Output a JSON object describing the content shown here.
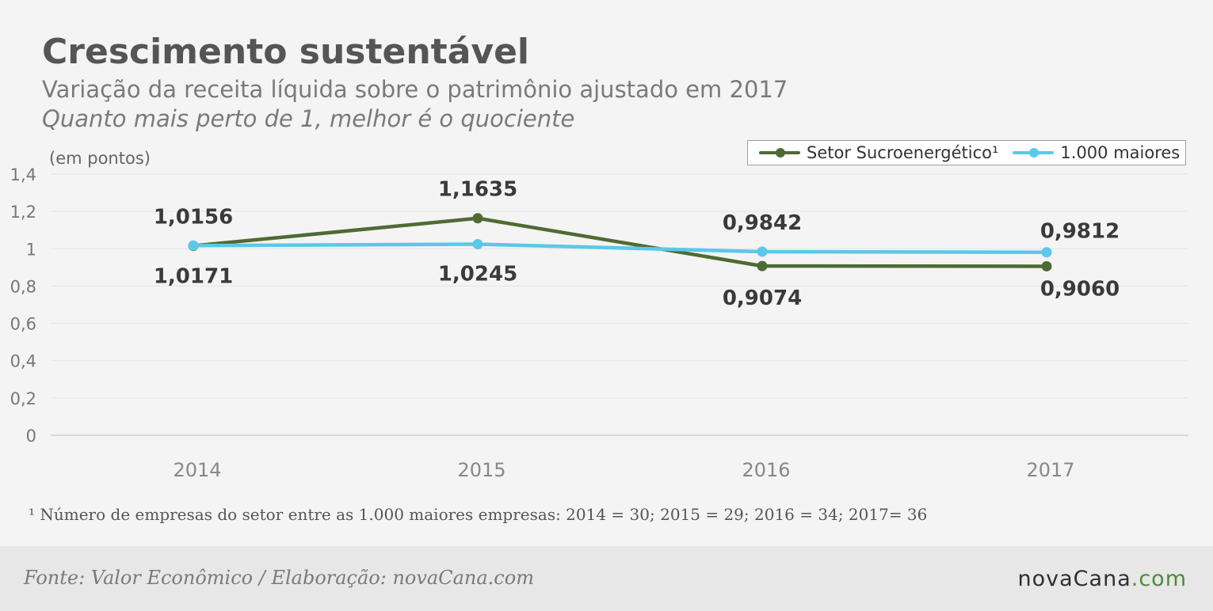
{
  "header": {
    "title": "Crescimento sustentável",
    "subtitle": "Variação da receita líquida sobre o patrimônio ajustado em 2017",
    "note": "Quanto mais perto de 1, melhor é o quociente"
  },
  "chart_data": {
    "type": "line",
    "ylabel": "(em pontos)",
    "x": [
      "2014",
      "2015",
      "2016",
      "2017"
    ],
    "ylim": [
      0,
      1.4
    ],
    "yticks": [
      0,
      0.2,
      0.4,
      0.6,
      0.8,
      1,
      1.2,
      1.4
    ],
    "ytick_labels": [
      "0",
      "0,2",
      "0,4",
      "0,6",
      "0,8",
      "1",
      "1,2",
      "1,4"
    ],
    "grid": true,
    "legend": "top-right",
    "series": [
      {
        "name": "Setor Sucroenergético¹",
        "color": "#4e6b33",
        "values": [
          1.0156,
          1.1635,
          0.9074,
          0.906
        ],
        "labels": [
          "1,0156",
          "1,1635",
          "0,9074",
          "0,9060"
        ]
      },
      {
        "name": "1.000 maiores",
        "color": "#5bc8e8",
        "values": [
          1.0171,
          1.0245,
          0.9842,
          0.9812
        ],
        "labels": [
          "1,0171",
          "1,0245",
          "0,9842",
          "0,9812"
        ]
      }
    ]
  },
  "footnote": "¹ Número de empresas do setor entre as 1.000 maiores empresas: 2014 = 30; 2015 = 29; 2016 = 34; 2017= 36",
  "footer": {
    "source": "Fonte: Valor Econômico / Elaboração: novaCana.com",
    "brand_name": "novaCana",
    "brand_tld": ".com"
  }
}
